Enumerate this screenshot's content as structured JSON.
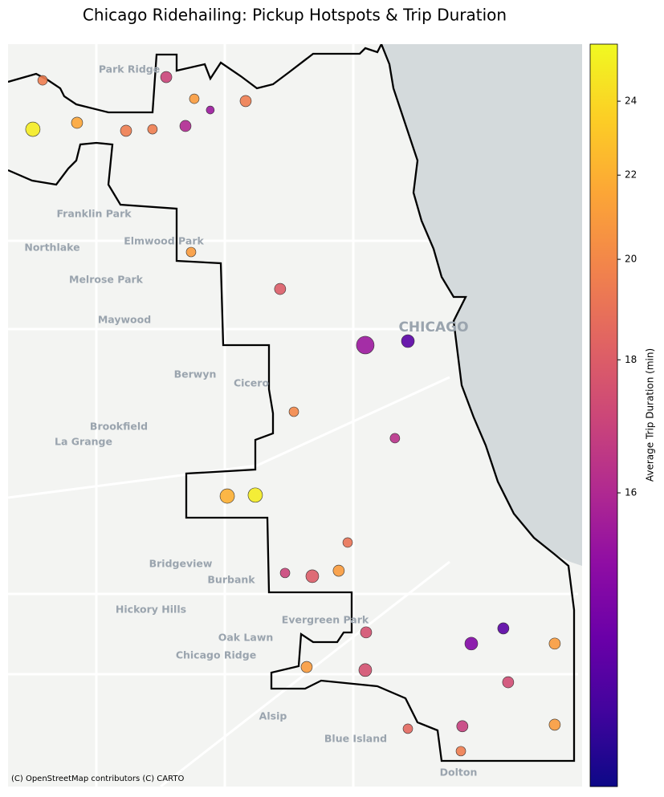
{
  "chart_data": {
    "type": "scatter",
    "title": "Chicago Ridehailing: Pickup Hotspots & Trip Duration",
    "colorbar_label": "Average Trip Duration (min)",
    "colormap": "plasma",
    "clim": [
      14.2,
      25.7
    ],
    "norm": {
      "type": "power",
      "gamma": 0.5
    },
    "cticks": [
      16,
      18,
      20,
      22,
      24
    ],
    "xlim": [
      -87.95,
      -87.52
    ],
    "ylim": [
      41.64,
      42.03
    ],
    "x": [
      -87.9241,
      -87.9314,
      -87.8983,
      -87.8616,
      -87.8418,
      -87.8315,
      -87.8105,
      -87.7985,
      -87.8171,
      -87.772,
      -87.8129,
      -87.7462,
      -87.6824,
      -87.6505,
      -87.7359,
      -87.6602,
      -87.7858,
      -87.7648,
      -87.6956,
      -87.7425,
      -87.7221,
      -87.7023,
      -87.6818,
      -87.579,
      -87.603,
      -87.5405,
      -87.7263,
      -87.6824,
      -87.5754,
      -87.6505,
      -87.6097,
      -87.5405,
      -87.6108
    ],
    "y": [
      42.011,
      41.9853,
      41.9887,
      41.9845,
      41.9853,
      42.0127,
      42.0013,
      41.9954,
      41.987,
      42.0001,
      41.9208,
      41.9014,
      41.8719,
      41.874,
      41.8369,
      41.823,
      41.7926,
      41.7931,
      41.7682,
      41.7522,
      41.7505,
      41.7534,
      41.721,
      41.7231,
      41.7151,
      41.7151,
      41.7028,
      41.7012,
      41.6948,
      41.6704,
      41.6717,
      41.6725,
      41.6586
    ],
    "values": [
      19.5,
      25,
      21.5,
      19.5,
      19.5,
      17,
      21,
      15.5,
      16,
      19.5,
      21,
      18,
      15.5,
      14.5,
      20,
      16.3,
      22,
      25,
      19,
      17,
      18,
      21,
      17.5,
      14.5,
      15,
      21,
      21,
      17.5,
      17.3,
      18.5,
      16.8,
      21,
      19.5
    ],
    "sizes": [
      36,
      81,
      49,
      49,
      36,
      49,
      36,
      25,
      49,
      49,
      36,
      49,
      121,
      64,
      36,
      36,
      81,
      81,
      36,
      36,
      64,
      49,
      49,
      49,
      64,
      49,
      49,
      64,
      49,
      36,
      49,
      49,
      36
    ],
    "places": [
      "Park Ridge",
      "Franklin Park",
      "Northlake",
      "Elmwood Park",
      "Melrose Park",
      "Maywood",
      "CHICAGO",
      "Berwyn",
      "Cicero",
      "Brookfield",
      "La Grange",
      "Bridgeview",
      "Burbank",
      "Hickory Hills",
      "Evergreen Park",
      "Oak Lawn",
      "Chicago Ridge",
      "Alsip",
      "Blue Island",
      "Dolton"
    ],
    "attribution": "(C) OpenStreetMap contributors (C) CARTO"
  }
}
